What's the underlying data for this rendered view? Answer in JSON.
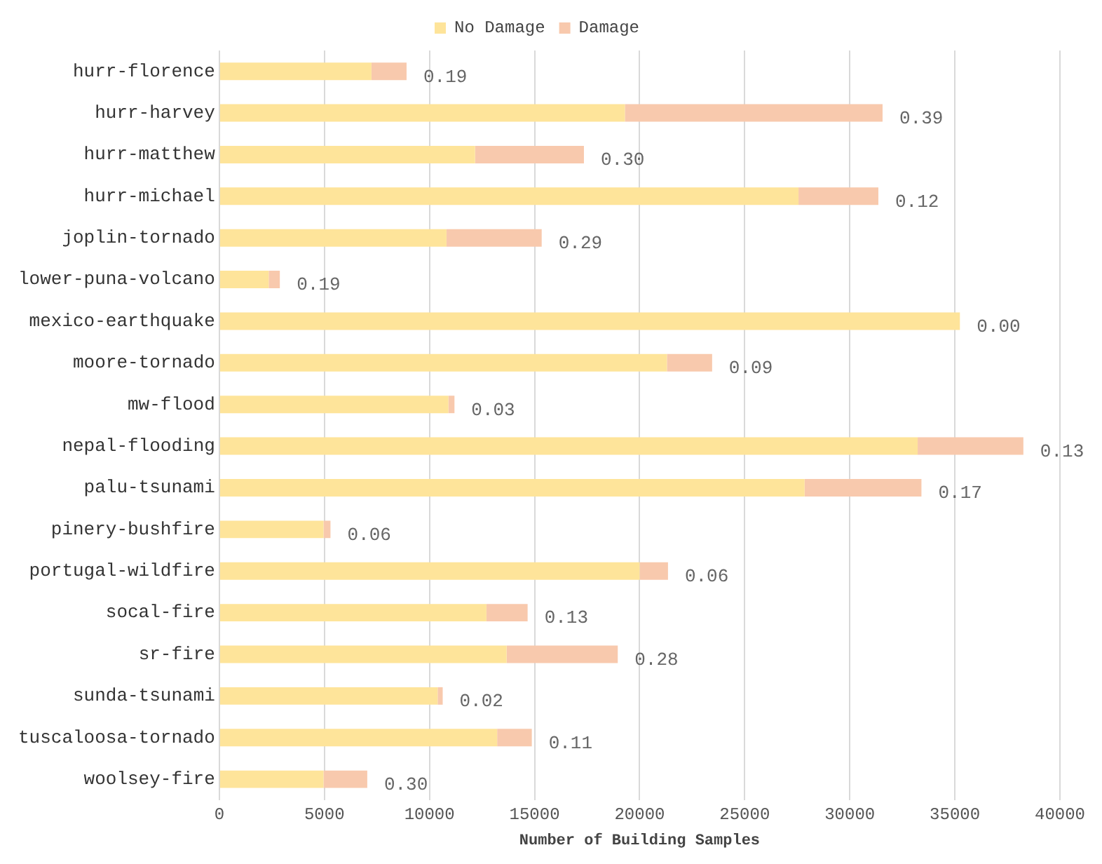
{
  "chart_data": {
    "type": "bar",
    "orientation": "horizontal",
    "stacked": true,
    "xlabel": "Number of Building Samples",
    "categories": [
      "hurr-florence",
      "hurr-harvey",
      "hurr-matthew",
      "hurr-michael",
      "joplin-tornado",
      "lower-puna-volcano",
      "mexico-earthquake",
      "moore-tornado",
      "mw-flood",
      "nepal-flooding",
      "palu-tsunami",
      "pinery-bushfire",
      "portugal-wildfire",
      "socal-fire",
      "sr-fire",
      "sunda-tsunami",
      "tuscaloosa-tornado",
      "woolsey-fire"
    ],
    "series": [
      {
        "name": "No Damage",
        "color": "#fee49a",
        "values": [
          7240,
          19300,
          12170,
          27560,
          10810,
          2350,
          35240,
          21300,
          10900,
          33230,
          27850,
          4960,
          20000,
          12710,
          13670,
          10390,
          13220,
          4960
        ]
      },
      {
        "name": "Damage",
        "color": "#f8c9ad",
        "values": [
          1670,
          12260,
          5180,
          3800,
          4530,
          530,
          0,
          2150,
          290,
          5030,
          5560,
          330,
          1350,
          1960,
          5290,
          240,
          1650,
          2080
        ]
      }
    ],
    "annotations": [
      {
        "text": "0.19",
        "x": 8910,
        "y": "hurr-florence"
      },
      {
        "text": "0.39",
        "x": 31560,
        "y": "hurr-harvey"
      },
      {
        "text": "0.30",
        "x": 17350,
        "y": "hurr-matthew"
      },
      {
        "text": "0.12",
        "x": 31360,
        "y": "hurr-michael"
      },
      {
        "text": "0.29",
        "x": 15340,
        "y": "joplin-tornado"
      },
      {
        "text": "0.19",
        "x": 2880,
        "y": "lower-puna-volcano"
      },
      {
        "text": "0.00",
        "x": 35240,
        "y": "mexico-earthquake"
      },
      {
        "text": "0.09",
        "x": 23450,
        "y": "moore-tornado"
      },
      {
        "text": "0.03",
        "x": 11190,
        "y": "mw-flood"
      },
      {
        "text": "0.13",
        "x": 38260,
        "y": "nepal-flooding"
      },
      {
        "text": "0.17",
        "x": 33410,
        "y": "palu-tsunami"
      },
      {
        "text": "0.06",
        "x": 5290,
        "y": "pinery-bushfire"
      },
      {
        "text": "0.06",
        "x": 21350,
        "y": "portugal-wildfire"
      },
      {
        "text": "0.13",
        "x": 14670,
        "y": "socal-fire"
      },
      {
        "text": "0.28",
        "x": 18960,
        "y": "sr-fire"
      },
      {
        "text": "0.02",
        "x": 10630,
        "y": "sunda-tsunami"
      },
      {
        "text": "0.11",
        "x": 14870,
        "y": "tuscaloosa-tornado"
      },
      {
        "text": "0.30",
        "x": 7040,
        "y": "woolsey-fire"
      }
    ],
    "xlim": [
      0,
      40000
    ],
    "xticks": [
      0,
      5000,
      10000,
      15000,
      20000,
      25000,
      30000,
      35000,
      40000
    ],
    "grid": "x",
    "legend": "top"
  }
}
